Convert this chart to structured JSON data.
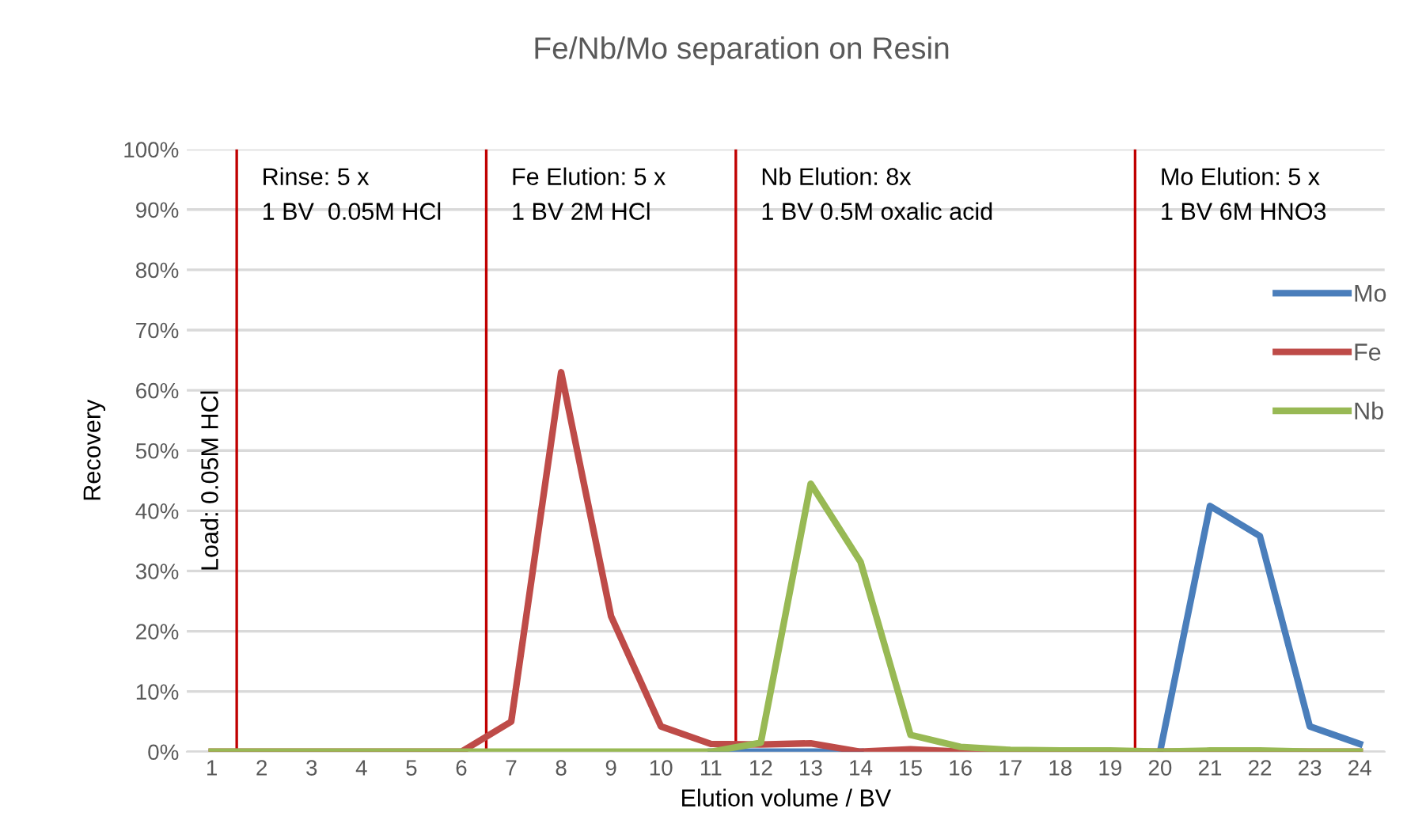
{
  "chart_data": {
    "type": "line",
    "title": "Fe/Nb/Mo separation on Resin",
    "xlabel": "Elution volume / BV",
    "ylabel": "Recovery",
    "x": [
      1,
      2,
      3,
      4,
      5,
      6,
      7,
      8,
      9,
      10,
      11,
      12,
      13,
      14,
      15,
      16,
      17,
      18,
      19,
      20,
      21,
      22,
      23,
      24
    ],
    "xlim": [
      0.5,
      24.5
    ],
    "xticks": [
      1,
      2,
      3,
      4,
      5,
      6,
      7,
      8,
      9,
      10,
      11,
      12,
      13,
      14,
      15,
      16,
      17,
      18,
      19,
      20,
      21,
      22,
      23,
      24
    ],
    "ylim": [
      0,
      100
    ],
    "yticks": [
      {
        "value": 0,
        "label": "0%"
      },
      {
        "value": 10,
        "label": "10%"
      },
      {
        "value": 20,
        "label": "20%"
      },
      {
        "value": 30,
        "label": "30%"
      },
      {
        "value": 40,
        "label": "40%"
      },
      {
        "value": 50,
        "label": "50%"
      },
      {
        "value": 60,
        "label": "60%"
      },
      {
        "value": 70,
        "label": "70%"
      },
      {
        "value": 80,
        "label": "80%"
      },
      {
        "value": 90,
        "label": "90%"
      },
      {
        "value": 100,
        "label": "100%"
      }
    ],
    "series": [
      {
        "name": "Mo",
        "color": "#4a7ebb",
        "values": [
          null,
          null,
          null,
          null,
          null,
          null,
          null,
          null,
          null,
          null,
          0,
          0,
          0,
          0,
          null,
          null,
          null,
          null,
          null,
          0,
          40.8,
          35.8,
          4.2,
          1.3
        ]
      },
      {
        "name": "Fe",
        "color": "#be4b48",
        "values": [
          0,
          0,
          0,
          0,
          0,
          0,
          5,
          63,
          22.5,
          4.2,
          1.3,
          1.2,
          1.4,
          0,
          0.4,
          0,
          0,
          0,
          0,
          0,
          0,
          0,
          0,
          0
        ]
      },
      {
        "name": "Nb",
        "color": "#98b954",
        "values": [
          0,
          0,
          0,
          0,
          0,
          0,
          0,
          0,
          0,
          0,
          0,
          1.5,
          44.5,
          31.5,
          2.8,
          0.8,
          0.3,
          0.2,
          0.2,
          0,
          0.2,
          0.2,
          0,
          0
        ]
      }
    ],
    "ref_lines": [
      {
        "axis": "x",
        "value": 1.5,
        "color": "#c00000"
      },
      {
        "axis": "x",
        "value": 6.5,
        "color": "#c00000"
      },
      {
        "axis": "x",
        "value": 11.5,
        "color": "#c00000"
      },
      {
        "axis": "x",
        "value": 19.5,
        "color": "#c00000"
      }
    ],
    "annotations": [
      "Load: 0.05M HCl",
      "Rinse: 5 x\n1 BV  0.05M HCl",
      "Fe Elution: 5 x\n1 BV 2M HCl",
      "Nb Elution: 8x\n1 BV 0.5M oxalic acid",
      "Mo Elution: 5 x\n1 BV 6M HNO3"
    ],
    "grid": "y",
    "legend": "right",
    "line_style": "solid",
    "marker": "none"
  }
}
